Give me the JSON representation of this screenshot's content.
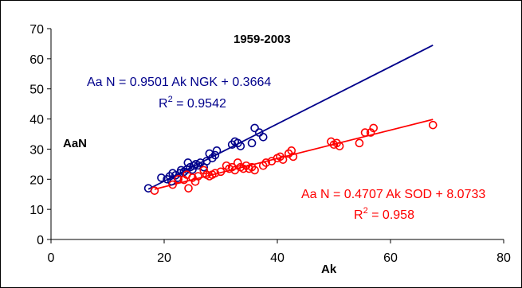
{
  "chart_data": {
    "type": "scatter",
    "title": "1959-2003",
    "xlabel": "Ak",
    "ylabel": "AaN",
    "xlim": [
      0,
      80
    ],
    "ylim": [
      0,
      70
    ],
    "x_ticks": [
      0,
      20,
      40,
      60,
      80
    ],
    "y_ticks": [
      0,
      10,
      20,
      30,
      40,
      50,
      60,
      70
    ],
    "grid": false,
    "series": [
      {
        "color": "#00008B",
        "marker": "open-circle",
        "points": [
          [
            17.2,
            17.0
          ],
          [
            19.5,
            20.5
          ],
          [
            20.5,
            20.0
          ],
          [
            21.0,
            21.0
          ],
          [
            21.3,
            19.3
          ],
          [
            21.5,
            22.0
          ],
          [
            22.0,
            21.3
          ],
          [
            22.4,
            20.5
          ],
          [
            22.8,
            22.0
          ],
          [
            23.0,
            23.0
          ],
          [
            23.5,
            22.5
          ],
          [
            24.0,
            23.2
          ],
          [
            24.2,
            25.5
          ],
          [
            24.6,
            24.0
          ],
          [
            25.0,
            23.2
          ],
          [
            25.2,
            24.5
          ],
          [
            25.6,
            25.0
          ],
          [
            26.0,
            24.6
          ],
          [
            26.4,
            25.5
          ],
          [
            27.0,
            24.0
          ],
          [
            27.5,
            26.0
          ],
          [
            28.0,
            28.5
          ],
          [
            28.5,
            27.0
          ],
          [
            29.0,
            28.0
          ],
          [
            29.3,
            29.5
          ],
          [
            32.0,
            31.5
          ],
          [
            32.5,
            32.5
          ],
          [
            33.0,
            32.0
          ],
          [
            33.5,
            31.0
          ],
          [
            35.5,
            32.0
          ],
          [
            36.0,
            37.0
          ],
          [
            36.8,
            35.5
          ],
          [
            37.5,
            34.0
          ]
        ],
        "trendline": {
          "slope": 0.9501,
          "intercept": 0.3664,
          "x_range": [
            17.2,
            67.5
          ]
        },
        "equation": "Aa N = 0.9501 Ak NGK + 0.3664",
        "r2_value": " = 0.9542"
      },
      {
        "color": "#FF0000",
        "marker": "open-circle",
        "points": [
          [
            18.3,
            16.2
          ],
          [
            21.5,
            18.2
          ],
          [
            22.5,
            20.0
          ],
          [
            23.5,
            19.8
          ],
          [
            24.0,
            21.5
          ],
          [
            24.3,
            17.0
          ],
          [
            25.0,
            20.5
          ],
          [
            25.5,
            19.2
          ],
          [
            26.0,
            21.0
          ],
          [
            27.0,
            23.0
          ],
          [
            27.5,
            21.5
          ],
          [
            28.0,
            21.0
          ],
          [
            28.5,
            21.5
          ],
          [
            29.0,
            22.0
          ],
          [
            30.0,
            22.5
          ],
          [
            31.0,
            24.5
          ],
          [
            31.5,
            23.5
          ],
          [
            32.0,
            24.0
          ],
          [
            32.5,
            23.0
          ],
          [
            33.0,
            25.5
          ],
          [
            33.5,
            24.0
          ],
          [
            34.0,
            23.5
          ],
          [
            34.5,
            24.5
          ],
          [
            35.0,
            23.5
          ],
          [
            35.5,
            24.0
          ],
          [
            36.0,
            23.0
          ],
          [
            37.5,
            24.5
          ],
          [
            38.0,
            25.5
          ],
          [
            39.0,
            26.0
          ],
          [
            40.0,
            27.0
          ],
          [
            40.5,
            27.5
          ],
          [
            41.0,
            26.5
          ],
          [
            42.0,
            28.5
          ],
          [
            42.5,
            29.5
          ],
          [
            42.8,
            27.5
          ],
          [
            49.5,
            32.5
          ],
          [
            50.0,
            31.5
          ],
          [
            50.5,
            32.0
          ],
          [
            51.0,
            31.0
          ],
          [
            54.5,
            32.0
          ],
          [
            55.5,
            35.5
          ],
          [
            56.5,
            35.5
          ],
          [
            57.0,
            37.0
          ],
          [
            67.5,
            38.0
          ]
        ],
        "trendline": {
          "slope": 0.4707,
          "intercept": 8.0733,
          "x_range": [
            18.3,
            67.5
          ]
        },
        "equation": "Aa N = 0.4707 Ak SOD + 8.0733",
        "r2_value": " = 0.958"
      }
    ]
  },
  "r2_prefix": "R",
  "r2_exponent": "2"
}
